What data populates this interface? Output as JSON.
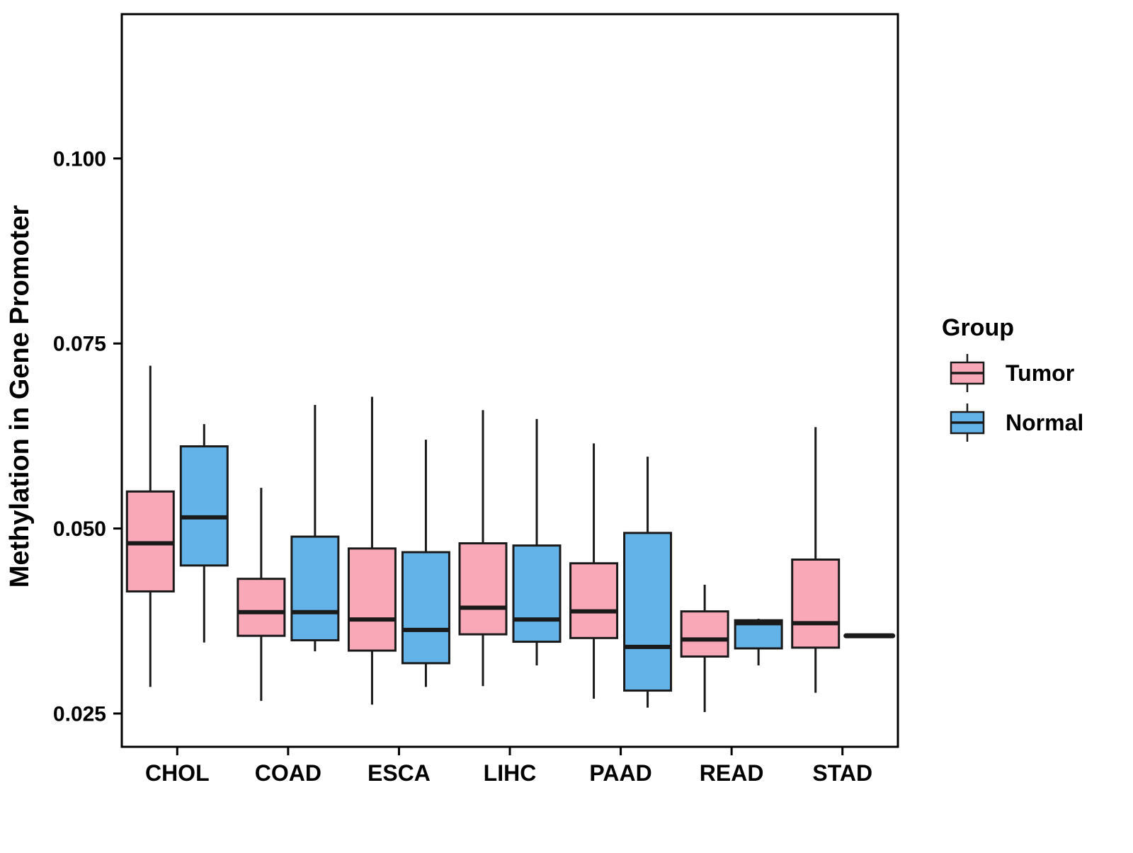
{
  "chart_data": {
    "type": "boxplot",
    "title": "",
    "xlabel": "",
    "ylabel": "Methylation in Gene Promoter",
    "categories": [
      "CHOL",
      "COAD",
      "ESCA",
      "LIHC",
      "PAAD",
      "READ",
      "STAD"
    ],
    "ylim": [
      0.0205,
      0.1195
    ],
    "yticks": [
      0.025,
      0.05,
      0.075,
      0.1
    ],
    "ytick_labels": [
      "0.025",
      "0.050",
      "0.075",
      "0.100"
    ],
    "grid": "off",
    "legend_position": "right",
    "legend": {
      "title": "Group",
      "entries": [
        {
          "label": "Tumor",
          "color": "#F9A8B8"
        },
        {
          "label": "Normal",
          "color": "#63B3E8"
        }
      ]
    },
    "colors": {
      "box_stroke": "#1a1a1a",
      "panel_border": "#000000",
      "text": "#000000"
    },
    "series": [
      {
        "name": "Tumor",
        "color": "#F9A8B8",
        "boxes": [
          {
            "category": "CHOL",
            "low": 0.0286,
            "q1": 0.0415,
            "median": 0.048,
            "q3": 0.055,
            "high": 0.072
          },
          {
            "category": "COAD",
            "low": 0.0267,
            "q1": 0.0355,
            "median": 0.0387,
            "q3": 0.0432,
            "high": 0.0555
          },
          {
            "category": "ESCA",
            "low": 0.0262,
            "q1": 0.0335,
            "median": 0.0377,
            "q3": 0.0473,
            "high": 0.0678
          },
          {
            "category": "LIHC",
            "low": 0.0287,
            "q1": 0.0357,
            "median": 0.0393,
            "q3": 0.048,
            "high": 0.066
          },
          {
            "category": "PAAD",
            "low": 0.027,
            "q1": 0.0352,
            "median": 0.0388,
            "q3": 0.0453,
            "high": 0.0615
          },
          {
            "category": "READ",
            "low": 0.0252,
            "q1": 0.0327,
            "median": 0.035,
            "q3": 0.0388,
            "high": 0.0424
          },
          {
            "category": "STAD",
            "low": 0.0278,
            "q1": 0.0339,
            "median": 0.0372,
            "q3": 0.0458,
            "high": 0.0637
          }
        ]
      },
      {
        "name": "Normal",
        "color": "#63B3E8",
        "boxes": [
          {
            "category": "CHOL",
            "low": 0.0346,
            "q1": 0.045,
            "median": 0.0515,
            "q3": 0.0611,
            "high": 0.0641
          },
          {
            "category": "COAD",
            "low": 0.0334,
            "q1": 0.0349,
            "median": 0.0387,
            "q3": 0.0489,
            "high": 0.0667
          },
          {
            "category": "ESCA",
            "low": 0.0286,
            "q1": 0.0318,
            "median": 0.0363,
            "q3": 0.0468,
            "high": 0.062
          },
          {
            "category": "LIHC",
            "low": 0.0315,
            "q1": 0.0347,
            "median": 0.0377,
            "q3": 0.0477,
            "high": 0.0648
          },
          {
            "category": "PAAD",
            "low": 0.0258,
            "q1": 0.0281,
            "median": 0.034,
            "q3": 0.0494,
            "high": 0.0597
          },
          {
            "category": "READ",
            "low": 0.0315,
            "q1": 0.0338,
            "median": 0.0372,
            "q3": 0.0376,
            "high": 0.0378
          },
          {
            "category": "STAD",
            "single": true,
            "median": 0.0355
          }
        ]
      }
    ]
  }
}
